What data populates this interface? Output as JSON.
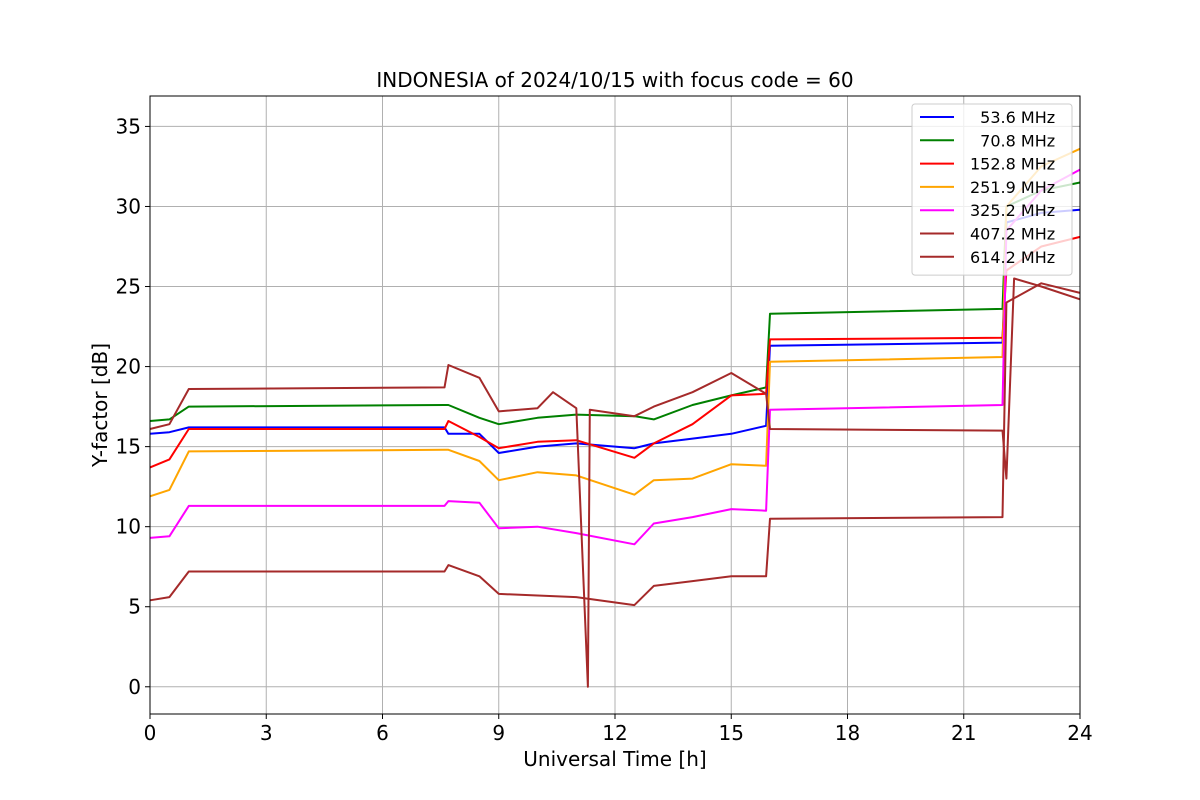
{
  "chart_data": {
    "type": "line",
    "title": "INDONESIA of 2024/10/15 with focus code = 60",
    "xlabel": "Universal Time [h]",
    "ylabel": "Y-factor [dB]",
    "xlim": [
      0,
      24
    ],
    "ylim": [
      -1.7,
      36.9
    ],
    "xticks": [
      0,
      3,
      6,
      9,
      12,
      15,
      18,
      21,
      24
    ],
    "yticks": [
      0,
      5,
      10,
      15,
      20,
      25,
      30,
      35
    ],
    "grid": true,
    "legend_position": "top-right",
    "series": [
      {
        "name": "  53.6 MHz",
        "color": "#0000ff",
        "points": [
          [
            0,
            15.8
          ],
          [
            0.5,
            15.9
          ],
          [
            1.0,
            16.2
          ],
          [
            7.6,
            16.2
          ],
          [
            7.7,
            15.8
          ],
          [
            8.5,
            15.8
          ],
          [
            9.0,
            14.6
          ],
          [
            10.0,
            15.0
          ],
          [
            11.0,
            15.2
          ],
          [
            12.5,
            14.9
          ],
          [
            13.0,
            15.2
          ],
          [
            14.0,
            15.5
          ],
          [
            15.0,
            15.8
          ],
          [
            15.9,
            16.3
          ],
          [
            16.0,
            21.3
          ],
          [
            22.0,
            21.5
          ],
          [
            22.1,
            29.0
          ],
          [
            23.0,
            29.6
          ],
          [
            24.0,
            29.8
          ]
        ]
      },
      {
        "name": "  70.8 MHz",
        "color": "#008000",
        "points": [
          [
            0,
            16.6
          ],
          [
            0.5,
            16.7
          ],
          [
            1.0,
            17.5
          ],
          [
            7.6,
            17.6
          ],
          [
            7.7,
            17.6
          ],
          [
            8.5,
            16.8
          ],
          [
            9.0,
            16.4
          ],
          [
            10.0,
            16.8
          ],
          [
            11.0,
            17.0
          ],
          [
            12.5,
            16.9
          ],
          [
            13.0,
            16.7
          ],
          [
            14.0,
            17.6
          ],
          [
            15.0,
            18.2
          ],
          [
            15.9,
            18.7
          ],
          [
            16.0,
            23.3
          ],
          [
            22.0,
            23.6
          ],
          [
            22.1,
            30.0
          ],
          [
            23.0,
            31.0
          ],
          [
            24.0,
            31.5
          ]
        ]
      },
      {
        "name": "152.8 MHz",
        "color": "#ff0000",
        "points": [
          [
            0,
            13.7
          ],
          [
            0.5,
            14.2
          ],
          [
            1.0,
            16.1
          ],
          [
            7.6,
            16.1
          ],
          [
            7.7,
            16.6
          ],
          [
            8.5,
            15.6
          ],
          [
            9.0,
            14.9
          ],
          [
            10.0,
            15.3
          ],
          [
            11.0,
            15.4
          ],
          [
            12.5,
            14.3
          ],
          [
            13.0,
            15.2
          ],
          [
            14.0,
            16.4
          ],
          [
            15.0,
            18.2
          ],
          [
            15.9,
            18.3
          ],
          [
            16.0,
            21.7
          ],
          [
            22.0,
            21.8
          ],
          [
            22.1,
            26.0
          ],
          [
            23.0,
            27.5
          ],
          [
            24.0,
            28.1
          ]
        ]
      },
      {
        "name": "251.9 MHz",
        "color": "#ffa500",
        "points": [
          [
            0,
            11.9
          ],
          [
            0.5,
            12.3
          ],
          [
            1.0,
            14.7
          ],
          [
            7.6,
            14.8
          ],
          [
            7.7,
            14.8
          ],
          [
            8.5,
            14.1
          ],
          [
            9.0,
            12.9
          ],
          [
            10.0,
            13.4
          ],
          [
            11.0,
            13.2
          ],
          [
            12.5,
            12.0
          ],
          [
            13.0,
            12.9
          ],
          [
            14.0,
            13.0
          ],
          [
            15.0,
            13.9
          ],
          [
            15.9,
            13.8
          ],
          [
            16.0,
            20.3
          ],
          [
            22.0,
            20.6
          ],
          [
            22.1,
            30.0
          ],
          [
            23.0,
            32.5
          ],
          [
            24.0,
            33.6
          ]
        ]
      },
      {
        "name": "325.2 MHz",
        "color": "#ff00ff",
        "points": [
          [
            0,
            9.3
          ],
          [
            0.5,
            9.4
          ],
          [
            1.0,
            11.3
          ],
          [
            7.6,
            11.3
          ],
          [
            7.7,
            11.6
          ],
          [
            8.5,
            11.5
          ],
          [
            9.0,
            9.9
          ],
          [
            10.0,
            10.0
          ],
          [
            11.0,
            9.6
          ],
          [
            12.5,
            8.9
          ],
          [
            13.0,
            10.2
          ],
          [
            14.0,
            10.6
          ],
          [
            15.0,
            11.1
          ],
          [
            15.9,
            11.0
          ],
          [
            16.0,
            17.3
          ],
          [
            22.0,
            17.6
          ],
          [
            22.1,
            28.5
          ],
          [
            23.0,
            31.0
          ],
          [
            24.0,
            32.3
          ]
        ]
      },
      {
        "name": "407.2 MHz",
        "color": "#a52a2a",
        "points": [
          [
            0,
            5.4
          ],
          [
            0.5,
            5.6
          ],
          [
            1.0,
            7.2
          ],
          [
            7.6,
            7.2
          ],
          [
            7.7,
            7.6
          ],
          [
            8.5,
            6.9
          ],
          [
            9.0,
            5.8
          ],
          [
            10.0,
            5.7
          ],
          [
            11.0,
            5.6
          ],
          [
            12.5,
            5.1
          ],
          [
            13.0,
            6.3
          ],
          [
            14.0,
            6.6
          ],
          [
            15.0,
            6.9
          ],
          [
            15.9,
            6.9
          ],
          [
            16.0,
            10.5
          ],
          [
            22.0,
            10.6
          ],
          [
            22.1,
            24.0
          ],
          [
            23.0,
            25.2
          ],
          [
            24.0,
            24.6
          ]
        ]
      },
      {
        "name": "614.2 MHz",
        "color": "#a52a2a",
        "points": [
          [
            0,
            16.1
          ],
          [
            0.5,
            16.4
          ],
          [
            1.0,
            18.6
          ],
          [
            7.6,
            18.7
          ],
          [
            7.7,
            20.1
          ],
          [
            8.5,
            19.3
          ],
          [
            9.0,
            17.2
          ],
          [
            10.0,
            17.4
          ],
          [
            10.4,
            18.4
          ],
          [
            11.0,
            17.4
          ],
          [
            11.3,
            0.0
          ],
          [
            11.35,
            17.3
          ],
          [
            12.5,
            16.9
          ],
          [
            13.0,
            17.5
          ],
          [
            14.0,
            18.4
          ],
          [
            15.0,
            19.6
          ],
          [
            15.9,
            18.3
          ],
          [
            16.0,
            16.1
          ],
          [
            22.0,
            16.0
          ],
          [
            22.1,
            13.0
          ],
          [
            22.3,
            25.5
          ],
          [
            23.0,
            25.0
          ],
          [
            24.0,
            24.2
          ]
        ]
      }
    ]
  }
}
